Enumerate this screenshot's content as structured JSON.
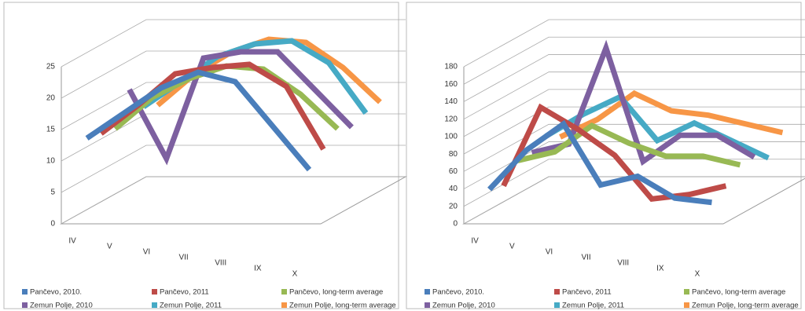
{
  "chart_data": [
    {
      "type": "line3d",
      "categories": [
        "IV",
        "V",
        "VI",
        "VII",
        "VIII",
        "IX",
        "X"
      ],
      "ylim": [
        0,
        25
      ],
      "yticks": [
        0,
        5,
        10,
        15,
        20,
        25
      ],
      "grid": true,
      "legend": "bottom",
      "series": [
        {
          "name": "Pančevo, 2010.",
          "color": "#4a7ebb",
          "values": [
            13,
            17,
            21,
            23.5,
            22,
            15,
            8
          ]
        },
        {
          "name": "Pančevo, 2011",
          "color": "#be4b48",
          "values": [
            12.5,
            17,
            22,
            23,
            23.5,
            20,
            10
          ]
        },
        {
          "name": "Pančevo, long-term average",
          "color": "#98b954",
          "values": [
            12,
            17,
            20,
            22,
            21.5,
            17.5,
            12
          ]
        },
        {
          "name": "Zemun Polje, 2010",
          "color": "#7d60a0",
          "values": [
            17,
            6,
            22,
            23,
            23,
            17,
            11
          ]
        },
        {
          "name": "Zemun Polje, 2011",
          "color": "#46aac5",
          "values": [
            13,
            17,
            21,
            23,
            23.5,
            20,
            12
          ]
        },
        {
          "name": "Zemun Polje, long-term average",
          "color": "#f79646",
          "values": [
            12,
            17,
            20.5,
            22.5,
            22,
            18,
            12.5
          ]
        }
      ]
    },
    {
      "type": "line3d",
      "categories": [
        "IV",
        "V",
        "VI",
        "VII",
        "VIII",
        "IX",
        "X"
      ],
      "ylim": [
        0,
        180
      ],
      "yticks": [
        0,
        20,
        40,
        60,
        80,
        100,
        120,
        140,
        160,
        180
      ],
      "grid": true,
      "legend": "bottom",
      "series": [
        {
          "name": "Pančevo, 2010.",
          "color": "#4a7ebb",
          "values": [
            35,
            80,
            110,
            40,
            50,
            25,
            20
          ]
        },
        {
          "name": "Pančevo, 2011",
          "color": "#be4b48",
          "values": [
            30,
            120,
            95,
            65,
            15,
            20,
            30
          ]
        },
        {
          "name": "Pančevo, long-term average",
          "color": "#98b954",
          "values": [
            50,
            60,
            90,
            70,
            55,
            55,
            45
          ]
        },
        {
          "name": "Zemun Polje, 2010",
          "color": "#7d60a0",
          "values": [
            50,
            60,
            170,
            40,
            70,
            70,
            45
          ]
        },
        {
          "name": "Zemun Polje, 2011",
          "color": "#46aac5",
          "values": [
            60,
            85,
            105,
            55,
            75,
            55,
            35
          ]
        },
        {
          "name": "Zemun Polje, long-term average",
          "color": "#f79646",
          "values": [
            50,
            70,
            100,
            80,
            75,
            65,
            55
          ]
        }
      ]
    }
  ]
}
